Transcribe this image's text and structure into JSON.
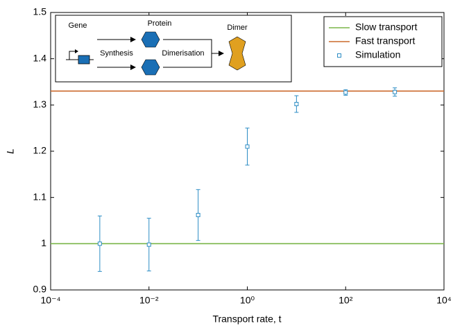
{
  "chart_data": {
    "type": "scatter",
    "xlabel": "Transport rate, t",
    "ylabel": "L",
    "xscale": "log",
    "xlim": [
      0.0001,
      10000
    ],
    "ylim": [
      0.9,
      1.5
    ],
    "xticks": [
      {
        "value": 0.0001,
        "label": "10⁻⁴"
      },
      {
        "value": 0.01,
        "label": "10⁻²"
      },
      {
        "value": 1,
        "label": "10⁰"
      },
      {
        "value": 100,
        "label": "10²"
      },
      {
        "value": 10000,
        "label": "10⁴"
      }
    ],
    "yticks": [
      0.9,
      1,
      1.1,
      1.2,
      1.3,
      1.4,
      1.5
    ],
    "legend": "upper right",
    "series": [
      {
        "name": "Slow transport",
        "kind": "hline",
        "color": "#7ab648",
        "values": [
          1
        ]
      },
      {
        "name": "Fast transport",
        "kind": "hline",
        "color": "#cc6a2c",
        "values": [
          1.33
        ]
      },
      {
        "name": "Simulation",
        "kind": "errorbar",
        "color": "#2b8cc4",
        "x": [
          0.001,
          0.01,
          0.1,
          1,
          10,
          100,
          1000
        ],
        "values": [
          1.0,
          0.998,
          1.062,
          1.21,
          1.302,
          1.327,
          1.328
        ],
        "errors": [
          0.06,
          0.057,
          0.055,
          0.04,
          0.018,
          0.006,
          0.009
        ]
      }
    ],
    "inset": {
      "gene": "Gene",
      "protein": "Protein",
      "dimer": "Dimer",
      "synthesis": "Synthesis",
      "dimerisation": "Dimerisation"
    }
  }
}
